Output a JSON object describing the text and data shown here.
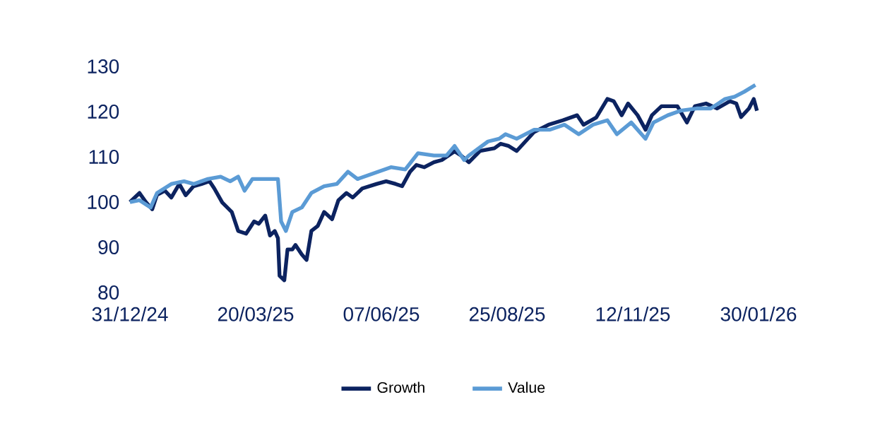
{
  "chart_data": {
    "type": "line",
    "xlim": [
      "2024-12-31",
      "2026-01-30"
    ],
    "xticks": [
      {
        "value": "2024-12-31",
        "label": "31/12/24"
      },
      {
        "value": "2025-03-20",
        "label": "20/03/25"
      },
      {
        "value": "2025-06-07",
        "label": "07/06/25"
      },
      {
        "value": "2025-08-25",
        "label": "25/08/25"
      },
      {
        "value": "2025-11-12",
        "label": "12/11/25"
      },
      {
        "value": "2026-01-30",
        "label": "30/01/26"
      }
    ],
    "ylim": [
      80,
      130
    ],
    "yticks": [
      80,
      90,
      100,
      110,
      120,
      130
    ],
    "grid": false,
    "legend": "bottom",
    "marker": "none",
    "line_style": "solid",
    "series": [
      {
        "name": "Growth",
        "color": "#0c2360",
        "x": [
          "2024-12-31",
          "2025-01-06",
          "2025-01-10",
          "2025-01-14",
          "2025-01-17",
          "2025-01-22",
          "2025-01-26",
          "2025-01-31",
          "2025-02-04",
          "2025-02-09",
          "2025-02-14",
          "2025-02-19",
          "2025-02-22",
          "2025-02-27",
          "2025-03-05",
          "2025-03-09",
          "2025-03-14",
          "2025-03-19",
          "2025-03-22",
          "2025-03-26",
          "2025-03-29",
          "2025-04-01",
          "2025-04-03",
          "2025-04-04",
          "2025-04-07",
          "2025-04-09",
          "2025-04-12",
          "2025-04-14",
          "2025-04-18",
          "2025-04-21",
          "2025-04-24",
          "2025-04-28",
          "2025-05-02",
          "2025-05-07",
          "2025-05-11",
          "2025-05-16",
          "2025-05-20",
          "2025-05-26",
          "2025-06-04",
          "2025-06-10",
          "2025-06-16",
          "2025-06-20",
          "2025-06-25",
          "2025-06-29",
          "2025-07-04",
          "2025-07-10",
          "2025-07-15",
          "2025-07-23",
          "2025-07-27",
          "2025-08-01",
          "2025-08-08",
          "2025-08-17",
          "2025-08-21",
          "2025-08-26",
          "2025-08-31",
          "2025-09-11",
          "2025-09-20",
          "2025-09-29",
          "2025-10-08",
          "2025-10-12",
          "2025-10-20",
          "2025-10-27",
          "2025-10-31",
          "2025-11-05",
          "2025-11-09",
          "2025-11-15",
          "2025-11-20",
          "2025-11-24",
          "2025-11-30",
          "2025-12-10",
          "2025-12-16",
          "2025-12-21",
          "2025-12-28",
          "2026-01-04",
          "2026-01-12",
          "2026-01-16",
          "2026-01-19",
          "2026-01-24",
          "2026-01-27",
          "2026-01-29"
        ],
        "values": [
          100,
          102,
          100,
          98.4,
          101.6,
          102.5,
          101,
          104,
          101.5,
          103.5,
          104,
          104.6,
          103,
          99.9,
          97.8,
          93.6,
          93,
          95.7,
          95.2,
          97,
          92.6,
          93.6,
          92,
          83.7,
          82.7,
          89.5,
          89.5,
          90.5,
          88.4,
          87.2,
          93.6,
          94.7,
          97.8,
          96.2,
          100.4,
          102,
          101,
          103,
          104,
          104.6,
          104,
          103.5,
          106.7,
          108.2,
          107.7,
          108.8,
          109.3,
          111.2,
          110.3,
          108.8,
          111.3,
          111.9,
          112.9,
          112.4,
          111.3,
          115.5,
          117.1,
          118.1,
          119.2,
          117.1,
          118.7,
          122.8,
          122.3,
          119.2,
          121.8,
          119.2,
          116,
          119.2,
          121.2,
          121.2,
          117.6,
          121.2,
          121.8,
          120.7,
          122.3,
          121.8,
          118.8,
          120.7,
          122.8,
          120.2
        ]
      },
      {
        "name": "Value",
        "color": "#5b9bd5",
        "x": [
          "2024-12-31",
          "2025-01-06",
          "2025-01-13",
          "2025-01-17",
          "2025-01-26",
          "2025-02-03",
          "2025-02-09",
          "2025-02-18",
          "2025-02-26",
          "2025-03-04",
          "2025-03-09",
          "2025-03-13",
          "2025-03-18",
          "2025-03-25",
          "2025-04-03",
          "2025-04-05",
          "2025-04-08",
          "2025-04-12",
          "2025-04-18",
          "2025-04-24",
          "2025-05-02",
          "2025-05-10",
          "2025-05-17",
          "2025-05-23",
          "2025-06-01",
          "2025-06-13",
          "2025-06-22",
          "2025-06-30",
          "2025-07-10",
          "2025-07-18",
          "2025-07-23",
          "2025-07-29",
          "2025-08-01",
          "2025-08-13",
          "2025-08-20",
          "2025-08-24",
          "2025-08-31",
          "2025-09-11",
          "2025-09-21",
          "2025-09-30",
          "2025-10-09",
          "2025-10-18",
          "2025-10-27",
          "2025-11-02",
          "2025-11-11",
          "2025-11-20",
          "2025-11-25",
          "2025-12-04",
          "2025-12-12",
          "2025-12-22",
          "2025-12-31",
          "2026-01-09",
          "2026-01-15",
          "2026-01-21",
          "2026-01-28"
        ],
        "values": [
          100,
          100.4,
          98.8,
          102,
          104,
          104.6,
          104,
          105.1,
          105.6,
          104.6,
          105.6,
          102.5,
          105.1,
          105.1,
          105.1,
          95.7,
          93.6,
          97.8,
          98.8,
          102,
          103.5,
          104,
          106.7,
          105.1,
          106.2,
          107.7,
          107.2,
          110.8,
          110.3,
          110.3,
          112.4,
          109.3,
          110.3,
          113.4,
          114,
          115,
          114,
          116,
          116,
          117.1,
          115,
          117.1,
          118.1,
          115,
          117.6,
          114,
          117.6,
          119.2,
          120.2,
          120.7,
          120.7,
          122.8,
          123.3,
          124.4,
          125.9
        ]
      }
    ]
  }
}
